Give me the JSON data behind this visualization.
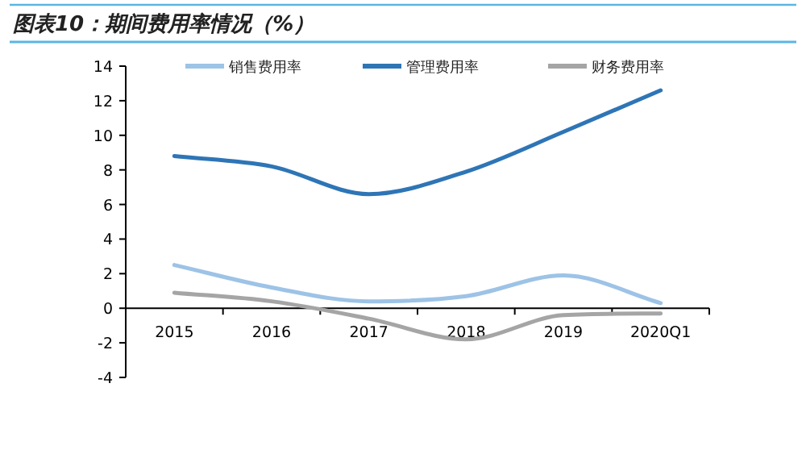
{
  "chart_data": {
    "type": "line",
    "title": "图表10：期间费用率情况（%）",
    "categories": [
      "2015",
      "2016",
      "2017",
      "2018",
      "2019",
      "2020Q1"
    ],
    "series": [
      {
        "name": "销售费用率",
        "color": "#9dc3e6",
        "values": [
          2.5,
          1.2,
          0.4,
          0.7,
          1.9,
          0.3
        ]
      },
      {
        "name": "管理费用率",
        "color": "#2e75b6",
        "values": [
          8.8,
          8.2,
          6.6,
          7.9,
          10.2,
          12.6
        ]
      },
      {
        "name": "财务费用率",
        "color": "#a5a5a5",
        "values": [
          0.9,
          0.4,
          -0.6,
          -1.8,
          -0.4,
          -0.3
        ]
      }
    ],
    "ylim": [
      -4,
      14
    ],
    "yticks": [
      -4,
      -2,
      0,
      2,
      4,
      6,
      8,
      10,
      12,
      14
    ],
    "grid": false,
    "legend": "top",
    "marker": "none",
    "line_style": "solid"
  }
}
